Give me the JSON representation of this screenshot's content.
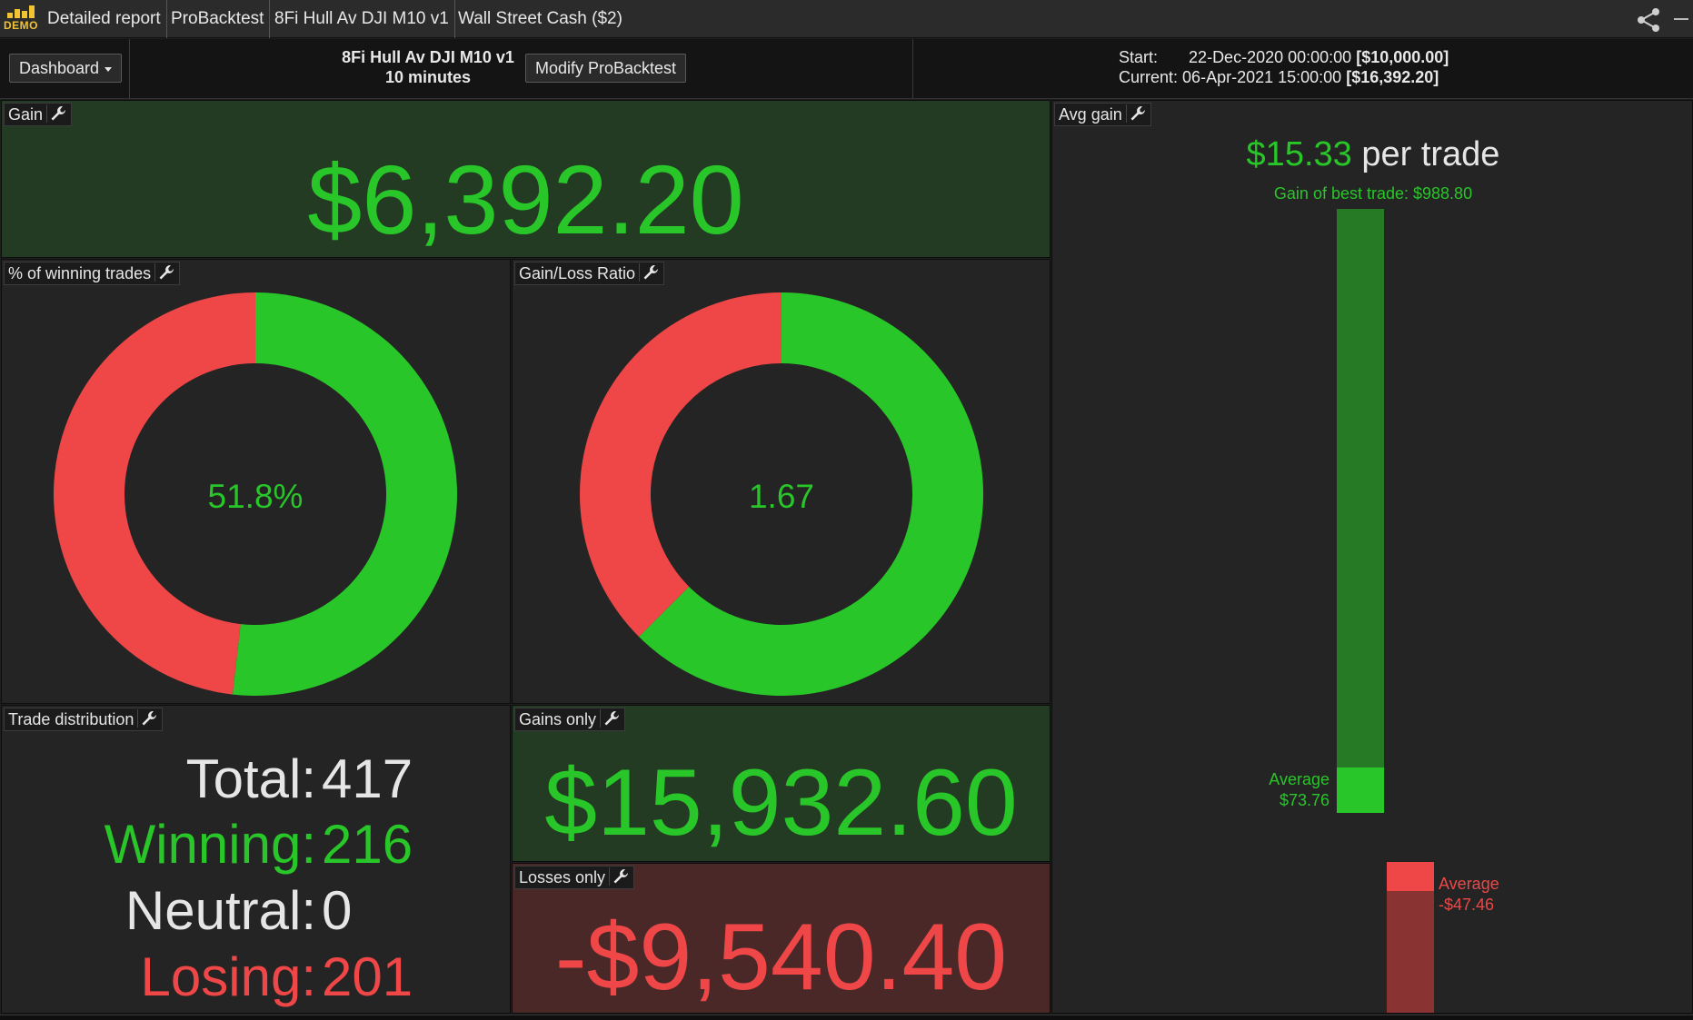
{
  "tabs": [
    {
      "label": "Detailed report"
    },
    {
      "label": "ProBacktest"
    },
    {
      "label": "8Fi Hull Av DJI M10 v1"
    },
    {
      "label": "Wall Street Cash ($2)"
    }
  ],
  "logo": {
    "text": "DEMO"
  },
  "toolbar": {
    "dashboard_label": "Dashboard",
    "strategy_name": "8Fi Hull Av DJI M10 v1",
    "timeframe": "10 minutes",
    "modify_label": "Modify ProBacktest",
    "start_label": "Start:",
    "start_date": "22-Dec-2020 00:00:00",
    "start_capital": "[$10,000.00]",
    "current_label": "Current:",
    "current_date": "06-Apr-2021 15:00:00",
    "current_capital": "[$16,392.20]"
  },
  "panels": {
    "gain": {
      "label": "Gain",
      "value": "$6,392.20"
    },
    "winning": {
      "label": "% of winning trades",
      "value": "51.8%",
      "fraction": 0.518
    },
    "ratio": {
      "label": "Gain/Loss Ratio",
      "value": "1.67",
      "fraction": 0.625
    },
    "distribution": {
      "label": "Trade distribution",
      "total_label": "Total:",
      "total": "417",
      "winning_label": "Winning:",
      "winning": "216",
      "neutral_label": "Neutral:",
      "neutral": "0",
      "losing_label": "Losing:",
      "losing": "201"
    },
    "gains_only": {
      "label": "Gains only",
      "value": "$15,932.60"
    },
    "losses_only": {
      "label": "Losses only",
      "value": "-$9,540.40"
    },
    "avg_gain": {
      "label": "Avg gain",
      "value": "$15.33",
      "suffix": "per trade",
      "best_trade": "Gain of best trade: $988.80",
      "best_value": 988.8,
      "avg_win_label": "Average",
      "avg_win": "$73.76",
      "avg_win_value": 73.76,
      "avg_loss_label": "Average",
      "avg_loss": "-$47.46",
      "avg_loss_value": -47.46
    }
  },
  "colors": {
    "green": "#28c628",
    "red": "#ef4747",
    "green_panel_bg": "#233a23",
    "red_panel_bg": "#4a2828",
    "green_bar_dark": "#267a26",
    "red_bar_dark": "#8a3333"
  },
  "icons": [
    "share-icon",
    "wrench-icon",
    "caret-down-icon",
    "minimize-icon"
  ]
}
